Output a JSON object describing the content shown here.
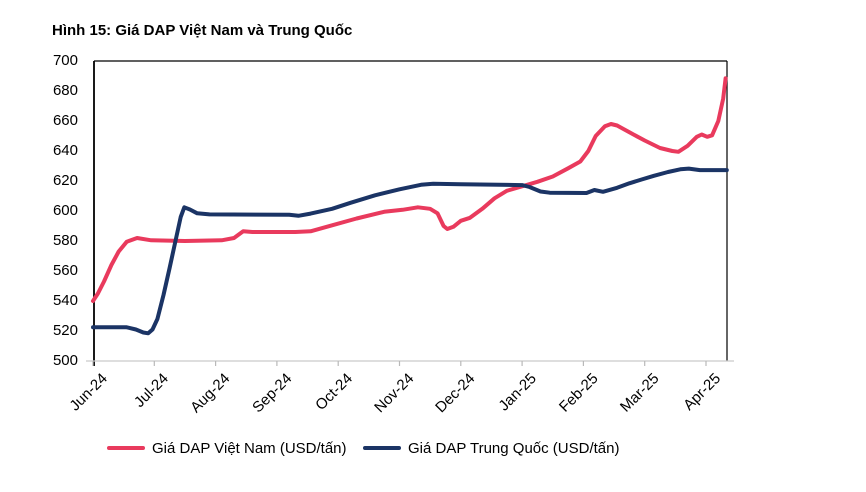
{
  "title": "Hình 15: Giá DAP Việt Nam và Trung Quốc",
  "colors": {
    "vietnam_line": "#e93a5d",
    "china_line": "#1b3465",
    "plot_border": "#000000",
    "bottom_axis": "#c9c9c9",
    "text": "#000000"
  },
  "chart_data": {
    "type": "line",
    "title": "Hình 15: Giá DAP Việt Nam và Trung Quốc",
    "xlabel": "",
    "ylabel": "",
    "x_axis": {
      "unit": "months (0 = Jun-24 tick, 1 per month)",
      "tick_labels": [
        "Jun-24",
        "Jul-24",
        "Aug-24",
        "Sep-24",
        "Oct-24",
        "Nov-24",
        "Dec-24",
        "Jan-25",
        "Feb-25",
        "Mar-25",
        "Apr-25"
      ],
      "label_rotation_deg": -45
    },
    "y_axis": {
      "min": 500,
      "max": 700,
      "step": 20,
      "tick_labels": [
        "700",
        "680",
        "660",
        "640",
        "620",
        "600",
        "580",
        "560",
        "540",
        "520",
        "500"
      ]
    },
    "grid": false,
    "legend_position": "bottom",
    "series": [
      {
        "name": "Giá DAP Việt Nam (USD/tấn)",
        "color": "#e93a5d",
        "points": [
          [
            0,
            540
          ],
          [
            0.08,
            545
          ],
          [
            0.18,
            553
          ],
          [
            0.3,
            564
          ],
          [
            0.42,
            573
          ],
          [
            0.55,
            579.5
          ],
          [
            0.72,
            582
          ],
          [
            0.95,
            580.5
          ],
          [
            1.5,
            580
          ],
          [
            2.1,
            580.5
          ],
          [
            2.3,
            582
          ],
          [
            2.45,
            586.5
          ],
          [
            2.6,
            586
          ],
          [
            3.3,
            586
          ],
          [
            3.55,
            586.5
          ],
          [
            3.9,
            590.5
          ],
          [
            4.3,
            595
          ],
          [
            4.75,
            599.5
          ],
          [
            5.05,
            600.8
          ],
          [
            5.3,
            602.5
          ],
          [
            5.5,
            601.5
          ],
          [
            5.62,
            598.5
          ],
          [
            5.72,
            590
          ],
          [
            5.78,
            588
          ],
          [
            5.88,
            589.5
          ],
          [
            6.0,
            593.5
          ],
          [
            6.15,
            595.5
          ],
          [
            6.35,
            601.5
          ],
          [
            6.55,
            608.5
          ],
          [
            6.75,
            613.5
          ],
          [
            7.0,
            616.5
          ],
          [
            7.25,
            619.5
          ],
          [
            7.5,
            623
          ],
          [
            7.75,
            628.5
          ],
          [
            7.95,
            633
          ],
          [
            8.08,
            640
          ],
          [
            8.2,
            650
          ],
          [
            8.35,
            656.5
          ],
          [
            8.45,
            658
          ],
          [
            8.55,
            657
          ],
          [
            8.75,
            652.5
          ],
          [
            9.0,
            647
          ],
          [
            9.25,
            642
          ],
          [
            9.45,
            640
          ],
          [
            9.55,
            639.5
          ],
          [
            9.7,
            643.5
          ],
          [
            9.85,
            649.5
          ],
          [
            9.93,
            651
          ],
          [
            10.02,
            649.5
          ],
          [
            10.1,
            650.5
          ],
          [
            10.2,
            660
          ],
          [
            10.28,
            675
          ],
          [
            10.32,
            688.5
          ]
        ]
      },
      {
        "name": "Giá DAP Trung Quốc (USD/tấn)",
        "color": "#1b3465",
        "points": [
          [
            0,
            522.5
          ],
          [
            0.55,
            522.5
          ],
          [
            0.7,
            521
          ],
          [
            0.82,
            519
          ],
          [
            0.9,
            518.5
          ],
          [
            0.97,
            521
          ],
          [
            1.05,
            528
          ],
          [
            1.15,
            544
          ],
          [
            1.25,
            562
          ],
          [
            1.35,
            581
          ],
          [
            1.43,
            596
          ],
          [
            1.49,
            602.5
          ],
          [
            1.58,
            601
          ],
          [
            1.7,
            598.5
          ],
          [
            1.9,
            597.7
          ],
          [
            3.2,
            597.5
          ],
          [
            3.35,
            596.8
          ],
          [
            3.55,
            598.3
          ],
          [
            3.9,
            601.5
          ],
          [
            4.2,
            605.5
          ],
          [
            4.6,
            610.5
          ],
          [
            5.0,
            614.5
          ],
          [
            5.35,
            617.5
          ],
          [
            5.55,
            618.2
          ],
          [
            6.0,
            617.8
          ],
          [
            7.0,
            617.3
          ],
          [
            7.12,
            616
          ],
          [
            7.3,
            613
          ],
          [
            7.45,
            612.2
          ],
          [
            8.05,
            612
          ],
          [
            8.18,
            614
          ],
          [
            8.32,
            612.8
          ],
          [
            8.55,
            615.5
          ],
          [
            8.75,
            618.5
          ],
          [
            8.95,
            621
          ],
          [
            9.15,
            623.5
          ],
          [
            9.38,
            626
          ],
          [
            9.58,
            627.8
          ],
          [
            9.72,
            628.3
          ],
          [
            9.9,
            627.3
          ],
          [
            10.34,
            627.3
          ]
        ]
      }
    ]
  },
  "legend": {
    "vietnam_label": "Giá DAP Việt Nam (USD/tấn)",
    "china_label": "Giá DAP Trung Quốc (USD/tấn)"
  }
}
